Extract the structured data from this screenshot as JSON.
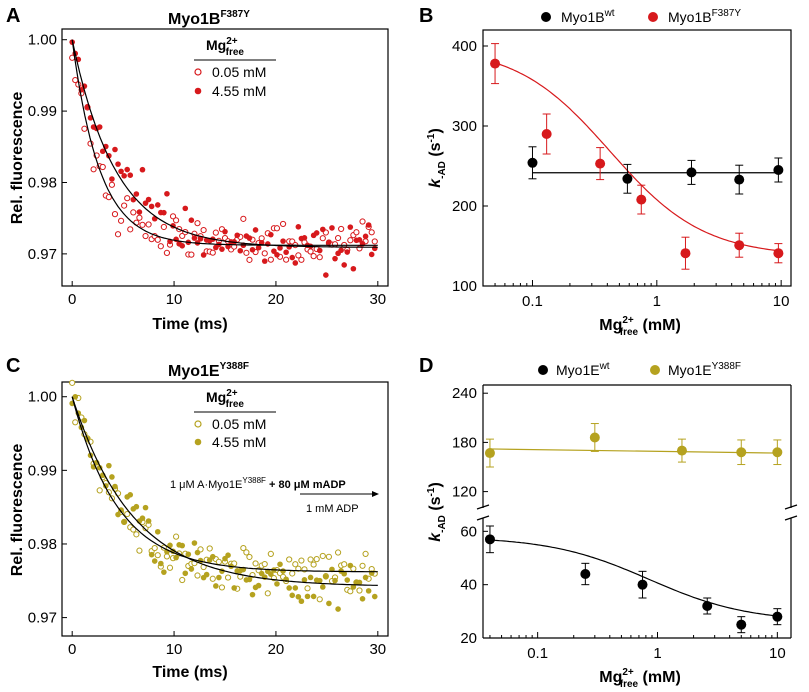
{
  "colors": {
    "red": "#d7191c",
    "olive": "#b5a21f",
    "black": "#000000"
  },
  "panelA": {
    "letter": "A",
    "title_base": "Myo1B",
    "title_sup": "F387Y",
    "xlabel": "Time (ms)",
    "ylabel": "Rel. fluorescence",
    "xticks": [
      "0",
      "10",
      "20",
      "30"
    ],
    "yticks": [
      "1.00",
      "0.99",
      "0.98",
      "0.97"
    ],
    "legend_title": "Mg",
    "legend_title_sup": "2+",
    "legend_title_sub": "free",
    "legend_items": [
      "0.05 mM",
      "4.55 mM"
    ]
  },
  "panelB": {
    "letter": "B",
    "legend_name1": "Myo1B",
    "legend_sup1": "wt",
    "legend_name2": "Myo1B",
    "legend_sup2": "F387Y",
    "xticks": [
      "0.1",
      "1",
      "10"
    ],
    "yticks": [
      "100",
      "200",
      "300",
      "400"
    ],
    "ylabel_k": "k",
    "ylabel_sub": "-AD",
    "ylabel_unit": " (s",
    "ylabel_unit_sup": "-1",
    "ylabel_close": ")",
    "xlabel_base": "Mg",
    "xlabel_sup": "2+",
    "xlabel_sub": "free",
    "xlabel_unit": " (mM)"
  },
  "panelC": {
    "letter": "C",
    "title_base": "Myo1E",
    "title_sup": "Y388F",
    "xlabel": "Time (ms)",
    "ylabel": "Rel. fluorescence",
    "xticks": [
      "0",
      "10",
      "20",
      "30"
    ],
    "yticks": [
      "1.00",
      "0.99",
      "0.98",
      "0.97"
    ],
    "legend_title": "Mg",
    "legend_title_sup": "2+",
    "legend_title_sub": "free",
    "legend_items": [
      "0.05 mM",
      "4.55 mM"
    ],
    "scheme_prefix": "1 μM A·Myo1E",
    "scheme_sup": "Y388F",
    "scheme_plus": " + 80 μM mADP",
    "scheme_chase": "1 mM ADP"
  },
  "panelD": {
    "letter": "D",
    "legend_name1": "Myo1E",
    "legend_sup1": "wt",
    "legend_name2": "Myo1E",
    "legend_sup2": "Y388F",
    "xticks": [
      "0.1",
      "1",
      "10"
    ],
    "yticks_top": [
      "120",
      "180",
      "240"
    ],
    "yticks_bottom": [
      "20",
      "40",
      "60"
    ],
    "ylabel_k": "k",
    "ylabel_sub": "-AD",
    "ylabel_unit": " (s",
    "ylabel_unit_sup": "-1",
    "ylabel_close": ")",
    "xlabel_base": "Mg",
    "xlabel_sup": "2+",
    "xlabel_sub": "free",
    "xlabel_unit": " (mM)"
  },
  "chart_data": [
    {
      "panel": "A",
      "type": "scatter",
      "title": "Myo1B F387Y",
      "xlabel": "Time (ms)",
      "ylabel": "Rel. fluorescence",
      "xlim": [
        -1,
        31
      ],
      "ylim": [
        0.9655,
        1.0015
      ],
      "series": [
        {
          "name": "0.05 mM",
          "marker": "open",
          "color": "#d7191c",
          "fit": {
            "model": "exp",
            "y0": 1.0,
            "yinf": 0.9712,
            "tau": 2.7
          }
        },
        {
          "name": "4.55 mM",
          "marker": "filled",
          "color": "#d7191c",
          "fit": {
            "model": "exp",
            "y0": 1.0,
            "yinf": 0.9709,
            "tau": 4.3
          }
        }
      ]
    },
    {
      "panel": "B",
      "type": "scatter",
      "xscale": "log",
      "xlabel": "Mg2+ free (mM)",
      "ylabel": "k-AD (s-1)",
      "xlim": [
        0.04,
        12
      ],
      "ylim": [
        100,
        420
      ],
      "series": [
        {
          "name": "Myo1B wt",
          "color": "#000000",
          "x": [
            0.1,
            0.58,
            1.9,
            4.6,
            9.5
          ],
          "y": [
            254,
            234,
            242,
            233,
            245
          ],
          "err": [
            20,
            18,
            15,
            18,
            15
          ]
        },
        {
          "name": "Myo1B F387Y",
          "color": "#d7191c",
          "x": [
            0.05,
            0.13,
            0.35,
            0.75,
            1.7,
            4.6,
            9.5
          ],
          "y": [
            378,
            290,
            253,
            208,
            141,
            151,
            141
          ],
          "err": [
            25,
            25,
            20,
            18,
            20,
            15,
            12
          ]
        }
      ]
    },
    {
      "panel": "C",
      "type": "scatter",
      "title": "Myo1E Y388F",
      "xlabel": "Time (ms)",
      "ylabel": "Rel. fluorescence",
      "xlim": [
        -1,
        31
      ],
      "ylim": [
        0.9675,
        1.002
      ],
      "series": [
        {
          "name": "0.05 mM",
          "marker": "open",
          "color": "#b5a21f",
          "fit": {
            "model": "exp",
            "y0": 1.0,
            "yinf": 0.9762,
            "tau": 4.5
          }
        },
        {
          "name": "4.55 mM",
          "marker": "filled",
          "color": "#b5a21f",
          "fit": {
            "model": "exp",
            "y0": 1.0,
            "yinf": 0.9742,
            "tau": 6.0
          }
        }
      ]
    },
    {
      "panel": "D",
      "type": "scatter",
      "xscale": "log",
      "broken_y_axis": true,
      "xlabel": "Mg2+ free (mM)",
      "ylabel": "k-AD (s-1)",
      "xlim": [
        0.035,
        13
      ],
      "ylim_bottom": [
        20,
        65
      ],
      "ylim_top": [
        100,
        250
      ],
      "series": [
        {
          "name": "Myo1E wt",
          "color": "#000000",
          "x": [
            0.04,
            0.25,
            0.75,
            2.6,
            5.0,
            10.0
          ],
          "y": [
            57,
            44,
            40,
            32,
            25,
            28
          ],
          "err": [
            5,
            4,
            5,
            3,
            3,
            3
          ]
        },
        {
          "name": "Myo1E Y388F",
          "color": "#b5a21f",
          "x": [
            0.04,
            0.3,
            1.6,
            5.0,
            10.0
          ],
          "y": [
            167,
            186,
            170,
            168,
            168
          ],
          "err": [
            17,
            17,
            14,
            15,
            15
          ]
        }
      ]
    }
  ]
}
